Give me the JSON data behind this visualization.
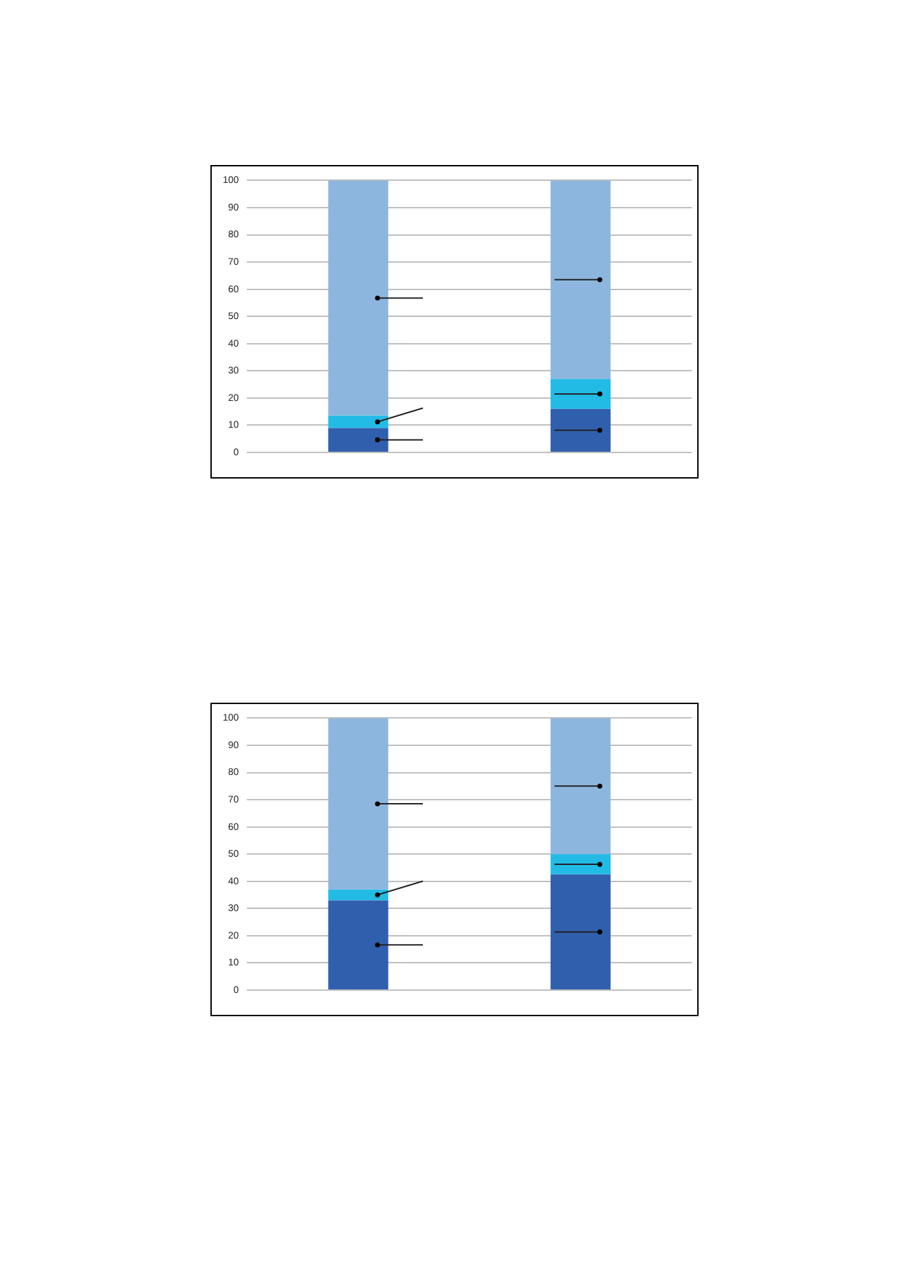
{
  "chart_data": [
    {
      "type": "bar",
      "stacked": true,
      "categories": [
        null,
        null
      ],
      "series": [
        {
          "color": "#3060ad",
          "values": [
            9,
            16
          ]
        },
        {
          "color": "#22bbe6",
          "values": [
            4.5,
            11
          ]
        },
        {
          "color": "#8db6de",
          "values": [
            86.5,
            73
          ]
        }
      ],
      "ylim": [
        0,
        100
      ],
      "yticks": [
        0,
        10,
        20,
        30,
        40,
        50,
        60,
        70,
        80,
        90,
        100
      ],
      "grid": "y",
      "tick_labels": "y",
      "legend": false
    },
    {
      "type": "bar",
      "stacked": true,
      "categories": [
        null,
        null
      ],
      "series": [
        {
          "color": "#3060ad",
          "values": [
            33,
            42.5
          ]
        },
        {
          "color": "#22bbe6",
          "values": [
            4,
            7.5
          ]
        },
        {
          "color": "#8db6de",
          "values": [
            63,
            50
          ]
        }
      ],
      "ylim": [
        0,
        100
      ],
      "yticks": [
        0,
        10,
        20,
        30,
        40,
        50,
        60,
        70,
        80,
        90,
        100
      ],
      "grid": "y",
      "tick_labels": "y",
      "legend": false
    }
  ]
}
